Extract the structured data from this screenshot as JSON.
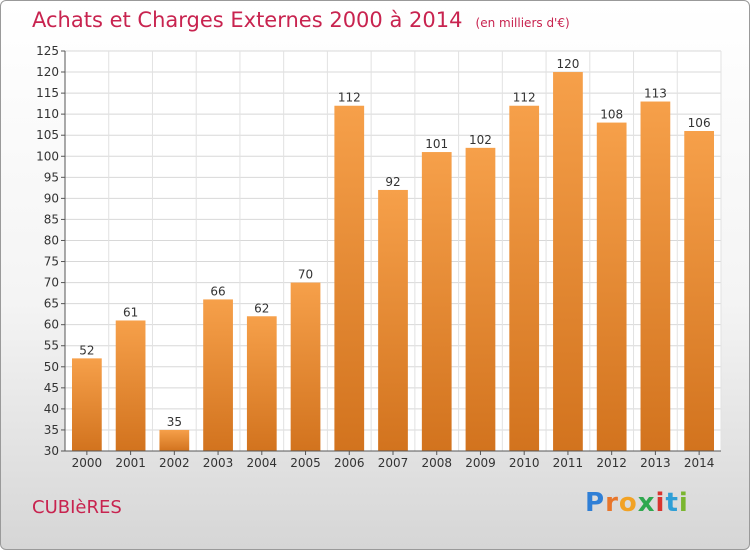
{
  "header": {
    "title": "Achats et Charges Externes 2000 à 2014",
    "subtitle": "(en milliers d'€)"
  },
  "footer": {
    "place": "CUBIèRES",
    "logo_text": "Proxiti"
  },
  "colors": {
    "accent": "#c8234f",
    "bar_light": "#f6a04a",
    "bar_dark": "#d2731e"
  },
  "chart_data": {
    "type": "bar",
    "title": "Achats et Charges Externes 2000 à 2014",
    "subtitle": "(en milliers d'€)",
    "xlabel": "",
    "ylabel": "",
    "categories": [
      "2000",
      "2001",
      "2002",
      "2003",
      "2004",
      "2005",
      "2006",
      "2007",
      "2008",
      "2009",
      "2010",
      "2011",
      "2012",
      "2013",
      "2014"
    ],
    "values": [
      52,
      61,
      35,
      66,
      62,
      70,
      112,
      92,
      101,
      102,
      112,
      120,
      108,
      113,
      106
    ],
    "ylim": [
      30,
      125
    ],
    "ytick_step": 5,
    "grid": true,
    "data_labels": true
  }
}
